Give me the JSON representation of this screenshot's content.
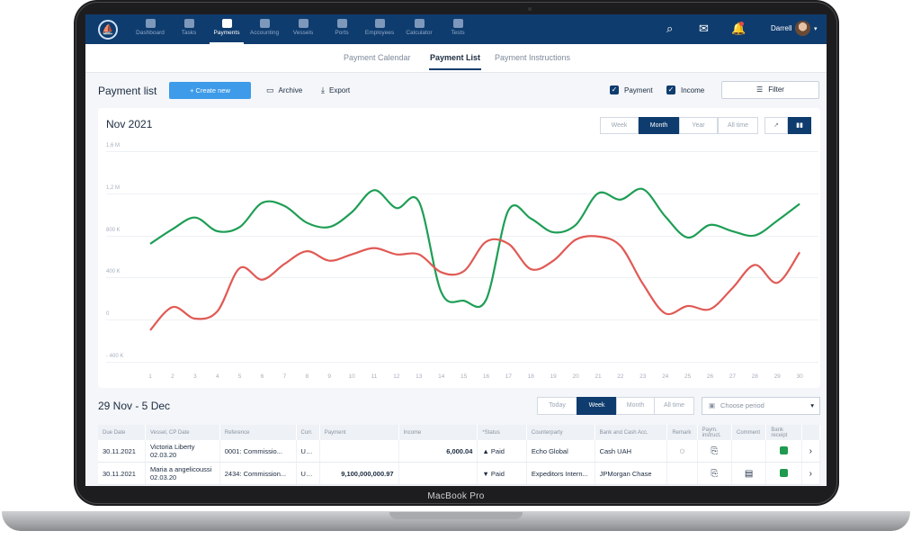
{
  "device": {
    "label": "MacBook Pro"
  },
  "nav": {
    "items": [
      {
        "label": "Dashboard",
        "icon": "dashboard-icon"
      },
      {
        "label": "Tasks",
        "icon": "tasks-icon"
      },
      {
        "label": "Payments",
        "icon": "calendar-icon",
        "active": true
      },
      {
        "label": "Accounting",
        "icon": "coin-icon"
      },
      {
        "label": "Vessels",
        "icon": "ship-icon"
      },
      {
        "label": "Ports",
        "icon": "anchor-icon"
      },
      {
        "label": "Employees",
        "icon": "id-card-icon"
      },
      {
        "label": "Calculator",
        "icon": "calculator-icon"
      },
      {
        "label": "Tests",
        "icon": "tests-icon"
      }
    ],
    "user": "Darrell"
  },
  "subtabs": [
    "Payment Calendar",
    "Payment List",
    "Payment Instructions"
  ],
  "toolbar": {
    "title": "Payment list",
    "create": "+ Create new",
    "archive": "Archive",
    "export": "Export",
    "payment": "Payment",
    "income": "Income",
    "filter": "Filter"
  },
  "chart_header": {
    "title": "Nov 2021",
    "ranges": [
      "Week",
      "Month",
      "Year",
      "All time"
    ],
    "active_range": "Month"
  },
  "chart_data": {
    "type": "line",
    "y_ticks": [
      "1,6 M",
      "1,2 M",
      "800 K",
      "400 K",
      "0",
      "- 400 K"
    ],
    "ylim": [
      -400000,
      1600000
    ],
    "x": [
      1,
      2,
      3,
      4,
      5,
      6,
      7,
      8,
      9,
      10,
      11,
      12,
      13,
      14,
      15,
      16,
      17,
      18,
      19,
      20,
      21,
      22,
      23,
      24,
      25,
      26,
      27,
      28,
      29,
      30
    ],
    "grid": true,
    "series": [
      {
        "color": "#1e9e55",
        "values": [
          720000,
          860000,
          970000,
          840000,
          880000,
          1110000,
          1080000,
          920000,
          880000,
          1020000,
          1230000,
          1060000,
          1120000,
          260000,
          180000,
          190000,
          1040000,
          960000,
          830000,
          900000,
          1200000,
          1140000,
          1240000,
          980000,
          780000,
          900000,
          840000,
          800000,
          940000,
          1100000
        ]
      },
      {
        "color": "#e05a55",
        "values": [
          -100000,
          120000,
          10000,
          80000,
          490000,
          380000,
          530000,
          650000,
          560000,
          620000,
          680000,
          620000,
          620000,
          450000,
          460000,
          740000,
          720000,
          480000,
          560000,
          760000,
          790000,
          700000,
          340000,
          60000,
          130000,
          100000,
          300000,
          520000,
          350000,
          640000
        ]
      }
    ]
  },
  "week": {
    "title": "29 Nov - 5 Dec",
    "ranges": [
      "Today",
      "Week",
      "Month",
      "All time"
    ],
    "active": "Week",
    "period_placeholder": "Choose period"
  },
  "table": {
    "headers": [
      "Due Date",
      "Vessel, CP Date",
      "Reference",
      "Curr.",
      "Payment",
      "Income",
      "*Status",
      "Counterparty",
      "Bank and Cash Acc.",
      "Remark",
      "Paym. instruct.",
      "Comment",
      "Bank receipt",
      ""
    ],
    "rows": [
      {
        "due": "30.11.2021",
        "vessel": "Victoria Liberty",
        "cp_date": "02.03.20",
        "ref": "0001: Commissio...",
        "curr": "USD",
        "payment": "",
        "income": "6,000.04",
        "status": "Paid",
        "counterparty": "Echo Global",
        "bank": "Cash UAH"
      },
      {
        "due": "30.11.2021",
        "vessel": "Maria a angelicoussi",
        "cp_date": "02.03.20",
        "ref": "2434: Commission...",
        "curr": "USD",
        "payment": "9,100,000,000.97",
        "income": "",
        "status": "Paid",
        "counterparty": "Expeditors Intern...",
        "bank": "JPMorgan Chase"
      }
    ]
  }
}
